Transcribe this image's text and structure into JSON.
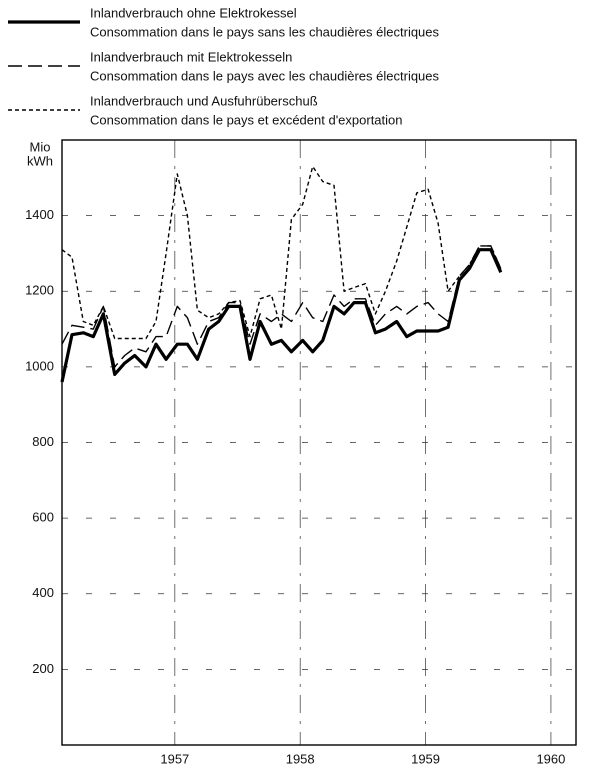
{
  "chart_data": {
    "type": "line",
    "y_label": [
      "Mio",
      "kWh"
    ],
    "x": [
      1956.1,
      1956.18,
      1956.27,
      1956.35,
      1956.43,
      1956.52,
      1956.6,
      1956.68,
      1956.77,
      1956.85,
      1956.93,
      1957.02,
      1957.1,
      1957.18,
      1957.27,
      1957.35,
      1957.43,
      1957.52,
      1957.6,
      1957.68,
      1957.77,
      1957.85,
      1957.93,
      1958.02,
      1958.1,
      1958.18,
      1958.27,
      1958.35,
      1958.43,
      1958.52,
      1958.6,
      1958.68,
      1958.77,
      1958.85,
      1958.93,
      1959.02,
      1959.1,
      1959.18,
      1959.27,
      1959.35,
      1959.43,
      1959.52,
      1959.6
    ],
    "series": [
      {
        "name": "Inlandverbrauch ohne Elektrokessel",
        "subname": "Consommation dans le pays sans les chaudières électriques",
        "color": "#000000",
        "dash": "solid",
        "width": 3.2,
        "values": [
          960,
          1085,
          1090,
          1080,
          1140,
          980,
          1010,
          1030,
          1000,
          1060,
          1020,
          1060,
          1060,
          1020,
          1100,
          1120,
          1160,
          1160,
          1020,
          1120,
          1060,
          1070,
          1040,
          1070,
          1040,
          1070,
          1160,
          1140,
          1170,
          1170,
          1090,
          1100,
          1120,
          1080,
          1095,
          1095,
          1095,
          1105,
          1230,
          1260,
          1310,
          1310,
          1250
        ]
      },
      {
        "name": "Inlandverbrauch mit Elektrokesseln",
        "subname": "Consommation dans le pays avec les chaudières électriques",
        "color": "#000000",
        "dash": "long",
        "width": 1.4,
        "values": [
          1060,
          1110,
          1105,
          1100,
          1160,
          1000,
          1030,
          1050,
          1040,
          1080,
          1080,
          1160,
          1130,
          1060,
          1120,
          1130,
          1170,
          1170,
          1060,
          1140,
          1120,
          1140,
          1120,
          1170,
          1130,
          1120,
          1190,
          1160,
          1180,
          1180,
          1110,
          1140,
          1160,
          1140,
          1160,
          1170,
          1140,
          1120,
          1240,
          1270,
          1320,
          1320,
          1260
        ]
      },
      {
        "name": "Inlandverbrauch und Ausfuhrüberschuß",
        "subname": "Consommation dans le pays et excédent d'exportation",
        "color": "#000000",
        "dash": "short",
        "width": 1.4,
        "values": [
          1310,
          1290,
          1120,
          1110,
          1160,
          1075,
          1075,
          1075,
          1075,
          1120,
          1300,
          1510,
          1400,
          1150,
          1130,
          1140,
          1170,
          1175,
          1080,
          1180,
          1190,
          1100,
          1390,
          1430,
          1530,
          1490,
          1480,
          1200,
          1210,
          1220,
          1140,
          1200,
          1280,
          1370,
          1460,
          1470,
          1380,
          1200,
          1240,
          1270,
          1320,
          1320,
          1260
        ]
      }
    ],
    "xlim": [
      1956.1,
      1960.2
    ],
    "xticks": [
      1957,
      1958,
      1959,
      1960
    ],
    "ylim": [
      0,
      1600
    ],
    "yticks": [
      200,
      400,
      600,
      800,
      1000,
      1200,
      1400
    ],
    "grid": true
  }
}
